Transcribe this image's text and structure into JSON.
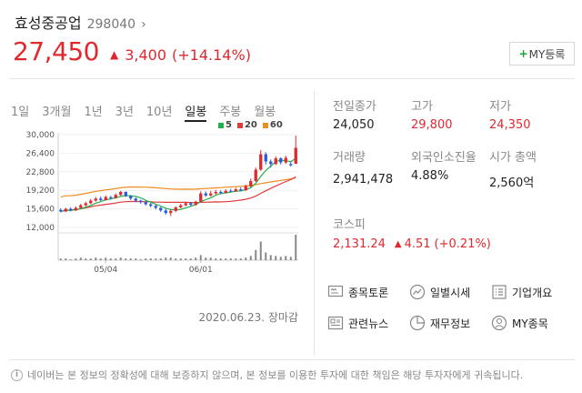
{
  "stock": {
    "name": "효성중공업",
    "code": "298040",
    "chevron": "›",
    "price": "27,450",
    "up_icon": "▲",
    "change": "3,400",
    "change_pct": "(+14.14%)"
  },
  "my_button": {
    "plus": "+",
    "label": "MY등록"
  },
  "period_tabs": [
    "1일",
    "3개월",
    "1년",
    "3년",
    "10년",
    "일봉",
    "주봉",
    "월봉"
  ],
  "period_active": "일봉",
  "legend": [
    {
      "label": "5",
      "color": "#22b04a"
    },
    {
      "label": "20",
      "color": "#e03a3a"
    },
    {
      "label": "60",
      "color": "#f08c1e"
    }
  ],
  "chart_data": {
    "type": "candlestick",
    "y_ticks": [
      "30,000",
      "26,400",
      "22,800",
      "19,200",
      "15,600",
      "12,000"
    ],
    "ylim": [
      12000,
      30000
    ],
    "x_tick_labels": [
      "05/04",
      "06/01"
    ],
    "x_tick_index": [
      9,
      28
    ],
    "up_color": "#e0282f",
    "down_color": "#2a5bd7",
    "candles": [
      {
        "o": 15400,
        "c": 15100,
        "h": 15700,
        "l": 14900
      },
      {
        "o": 15100,
        "c": 15600,
        "h": 15800,
        "l": 15000
      },
      {
        "o": 15600,
        "c": 15300,
        "h": 15900,
        "l": 15100
      },
      {
        "o": 15300,
        "c": 15800,
        "h": 16100,
        "l": 15200
      },
      {
        "o": 15800,
        "c": 16300,
        "h": 16600,
        "l": 15600
      },
      {
        "o": 16300,
        "c": 16700,
        "h": 17000,
        "l": 16100
      },
      {
        "o": 16700,
        "c": 17200,
        "h": 17500,
        "l": 16500
      },
      {
        "o": 17200,
        "c": 17600,
        "h": 17900,
        "l": 17000
      },
      {
        "o": 17600,
        "c": 17300,
        "h": 18000,
        "l": 17100
      },
      {
        "o": 17300,
        "c": 17900,
        "h": 18200,
        "l": 17200
      },
      {
        "o": 17900,
        "c": 17700,
        "h": 18100,
        "l": 17400
      },
      {
        "o": 17700,
        "c": 18300,
        "h": 18600,
        "l": 17600
      },
      {
        "o": 18300,
        "c": 18900,
        "h": 19100,
        "l": 18100
      },
      {
        "o": 18900,
        "c": 18100,
        "h": 19000,
        "l": 17900
      },
      {
        "o": 18100,
        "c": 17600,
        "h": 18300,
        "l": 17300
      },
      {
        "o": 17600,
        "c": 17200,
        "h": 17800,
        "l": 16900
      },
      {
        "o": 17200,
        "c": 16900,
        "h": 17400,
        "l": 16600
      },
      {
        "o": 16900,
        "c": 16500,
        "h": 17100,
        "l": 16200
      },
      {
        "o": 16500,
        "c": 16200,
        "h": 16800,
        "l": 15900
      },
      {
        "o": 16200,
        "c": 15800,
        "h": 16400,
        "l": 15500
      },
      {
        "o": 15800,
        "c": 15300,
        "h": 16000,
        "l": 15000
      },
      {
        "o": 15300,
        "c": 14800,
        "h": 15600,
        "l": 14500
      },
      {
        "o": 14800,
        "c": 15200,
        "h": 15500,
        "l": 14200
      },
      {
        "o": 15200,
        "c": 15900,
        "h": 16100,
        "l": 15000
      },
      {
        "o": 15900,
        "c": 16300,
        "h": 16600,
        "l": 15700
      },
      {
        "o": 16300,
        "c": 16700,
        "h": 17000,
        "l": 16100
      },
      {
        "o": 16700,
        "c": 16400,
        "h": 16900,
        "l": 16100
      },
      {
        "o": 16400,
        "c": 17000,
        "h": 17200,
        "l": 16200
      },
      {
        "o": 17000,
        "c": 18600,
        "h": 19000,
        "l": 16900
      },
      {
        "o": 18600,
        "c": 18200,
        "h": 19000,
        "l": 17900
      },
      {
        "o": 18200,
        "c": 18600,
        "h": 19100,
        "l": 18000
      },
      {
        "o": 18600,
        "c": 18900,
        "h": 19300,
        "l": 18400
      },
      {
        "o": 18900,
        "c": 18700,
        "h": 19200,
        "l": 18400
      },
      {
        "o": 18700,
        "c": 19100,
        "h": 19400,
        "l": 18600
      },
      {
        "o": 19100,
        "c": 19000,
        "h": 19500,
        "l": 18800
      },
      {
        "o": 19000,
        "c": 19400,
        "h": 19700,
        "l": 18900
      },
      {
        "o": 19400,
        "c": 19200,
        "h": 19800,
        "l": 19000
      },
      {
        "o": 19200,
        "c": 20000,
        "h": 20300,
        "l": 19100
      },
      {
        "o": 20000,
        "c": 21000,
        "h": 21500,
        "l": 19800
      },
      {
        "o": 21000,
        "c": 23200,
        "h": 23600,
        "l": 20800
      },
      {
        "o": 23200,
        "c": 26200,
        "h": 27000,
        "l": 23000
      },
      {
        "o": 26200,
        "c": 24800,
        "h": 26600,
        "l": 24200
      },
      {
        "o": 24800,
        "c": 24300,
        "h": 25200,
        "l": 23600
      },
      {
        "o": 24300,
        "c": 25400,
        "h": 25800,
        "l": 24100
      },
      {
        "o": 25400,
        "c": 24600,
        "h": 25600,
        "l": 24200
      },
      {
        "o": 24600,
        "c": 25500,
        "h": 25900,
        "l": 24300
      },
      {
        "o": 24300,
        "c": 24050,
        "h": 24800,
        "l": 23800
      },
      {
        "o": 24350,
        "c": 27450,
        "h": 29800,
        "l": 24350
      }
    ],
    "volumes": [
      2,
      2,
      1,
      2,
      3,
      2,
      2,
      3,
      2,
      3,
      2,
      2,
      3,
      2,
      2,
      2,
      1,
      2,
      2,
      2,
      2,
      3,
      3,
      2,
      2,
      2,
      2,
      3,
      6,
      3,
      3,
      2,
      2,
      2,
      2,
      2,
      2,
      3,
      5,
      12,
      22,
      9,
      6,
      5,
      4,
      5,
      4,
      30
    ]
  },
  "chart_date": "2020.06.23. 장마감",
  "info": {
    "prev_close_label": "전일종가",
    "prev_close": "24,050",
    "high_label": "고가",
    "high": "29,800",
    "low_label": "저가",
    "low": "24,350",
    "volume_label": "거래량",
    "volume": "2,941,478",
    "foreign_label": "외국인소진율",
    "foreign": "4.88%",
    "mcap_label": "시가 총액",
    "mcap": "2,560억"
  },
  "kospi": {
    "label": "코스피",
    "value": "2,131.24",
    "up_icon": "▲",
    "change": "4.51",
    "change_pct": "(+0.21%)"
  },
  "links": [
    {
      "label": "종목토론",
      "icon": "chat-icon"
    },
    {
      "label": "일별시세",
      "icon": "trend-icon"
    },
    {
      "label": "기업개요",
      "icon": "list-icon"
    },
    {
      "label": "관련뉴스",
      "icon": "news-icon"
    },
    {
      "label": "재무정보",
      "icon": "pie-icon"
    },
    {
      "label": "MY종목",
      "icon": "person-icon"
    }
  ],
  "notice": {
    "icon": "i",
    "text": "네이버는 본 정보의 정확성에 대해 보증하지 않으며, 본 정보를 이용한 투자에 대한 책임은 해당 투자자에게 귀속됩니다."
  }
}
